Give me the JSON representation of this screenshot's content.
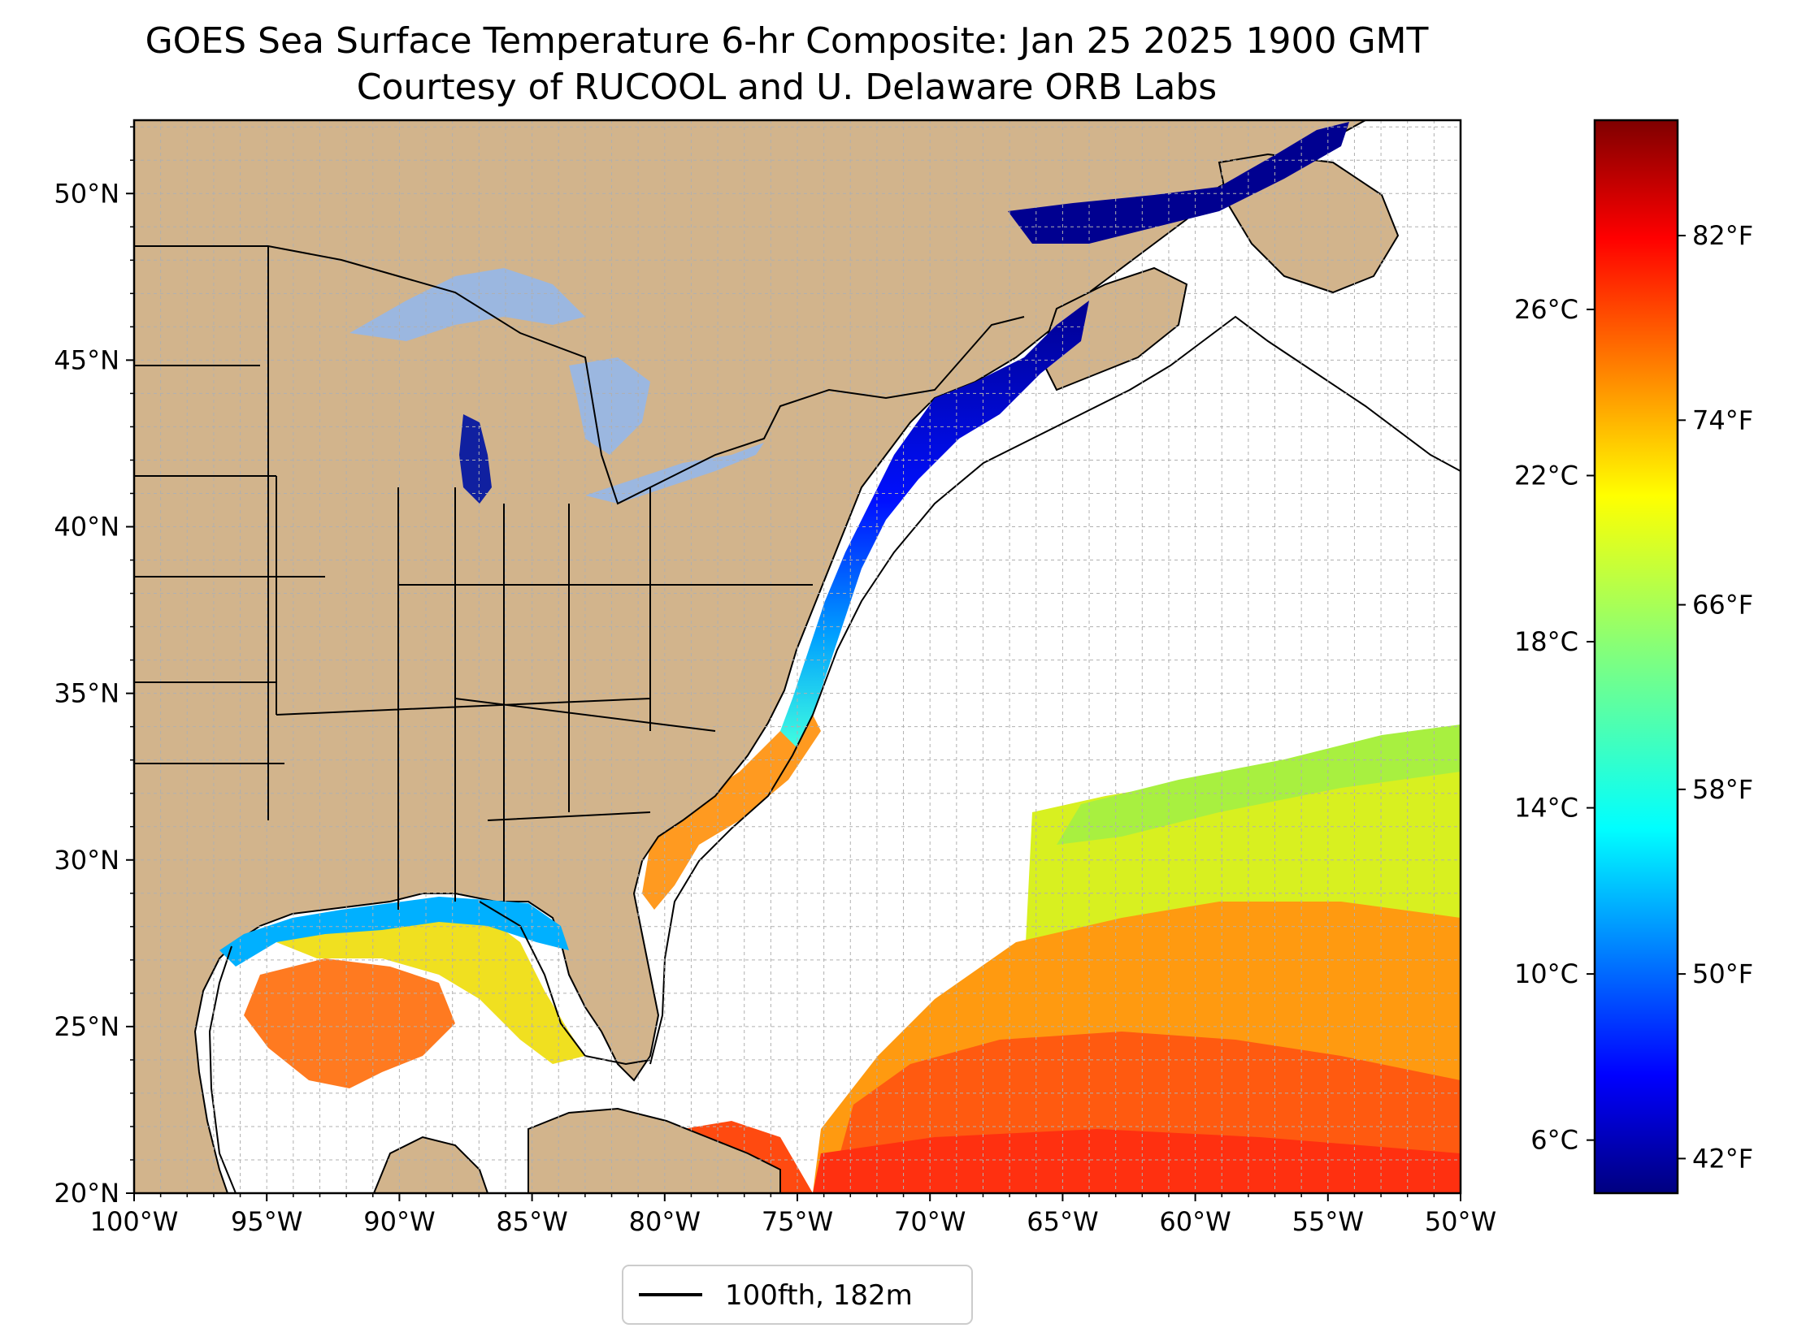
{
  "figure": {
    "title_line1": "GOES Sea Surface Temperature 6-hr Composite: Jan 25 2025 1900 GMT",
    "title_line2": "Courtesy of RUCOOL and U. Delaware ORB Labs"
  },
  "map": {
    "extent": {
      "lon_min": -100,
      "lon_max": -50,
      "lat_min": 20,
      "lat_max": 52.2
    },
    "x_ticks": [
      "100°W",
      "95°W",
      "90°W",
      "85°W",
      "80°W",
      "75°W",
      "70°W",
      "65°W",
      "60°W",
      "55°W",
      "50°W"
    ],
    "y_ticks": [
      "20°N",
      "25°N",
      "30°N",
      "35°N",
      "40°N",
      "45°N",
      "50°N"
    ],
    "land_color": "#d2b48c",
    "lake_color": "#9bb7e0",
    "grid": "on, dashed, 1-degree spacing"
  },
  "legend": {
    "label": "100fth, 182m",
    "line_color": "#000000"
  },
  "colorbar": {
    "colormap": "jet",
    "celsius_ticks": [
      "6°C",
      "10°C",
      "14°C",
      "18°C",
      "22°C",
      "26°C"
    ],
    "fahrenheit_ticks": [
      "42°F",
      "50°F",
      "58°F",
      "66°F",
      "74°F",
      "82°F"
    ],
    "range_f": [
      40.5,
      87
    ],
    "stops": [
      "#00007f",
      "#0000ff",
      "#007fff",
      "#00ffff",
      "#7fff7f",
      "#ffff00",
      "#ff7f00",
      "#ff0000",
      "#7f0000"
    ]
  }
}
